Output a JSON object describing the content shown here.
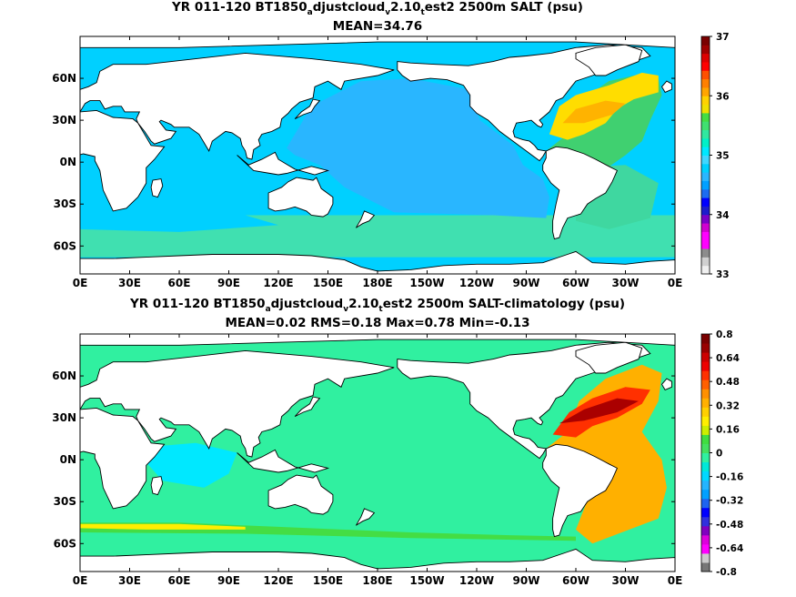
{
  "chart_data": [
    {
      "type": "heatmap",
      "title_parts": [
        "YR 011-120 BT1850",
        "a",
        "djustcloud",
        "v",
        "2.10",
        "t",
        "est2 2500m SALT (psu)"
      ],
      "subtitle": "MEAN=34.76",
      "x_ticks": [
        "0E",
        "30E",
        "60E",
        "90E",
        "120E",
        "150E",
        "180E",
        "150W",
        "120W",
        "90W",
        "60W",
        "30W",
        "0E"
      ],
      "y_ticks": [
        "60N",
        "30N",
        "0N",
        "30S",
        "60S"
      ],
      "colorbar_ticks": [
        "37",
        "36",
        "35",
        "34",
        "33"
      ],
      "colorbar_range": [
        33,
        37
      ],
      "colorbar_colors": [
        "#f0f0f0",
        "#d0d0d0",
        "#8c8c8c",
        "#ff00ff",
        "#ff00ff",
        "#d000d0",
        "#7a00c8",
        "#1c1ccc",
        "#0000ff",
        "#1c6cf0",
        "#00a0ff",
        "#29b6ff",
        "#00d0ff",
        "#3fd7ff",
        "#00e8ff",
        "#00f0c8",
        "#30e8a0",
        "#40e070",
        "#44dd44",
        "#f0e000",
        "#ffd200",
        "#ffa500",
        "#ff8000",
        "#ff5000",
        "#ff0000",
        "#dd0000",
        "#a00000",
        "#7a0000"
      ],
      "map_colors": {
        "ocean_base": "#00d0ff",
        "pacific": "#29b6ff",
        "southern": "#40e0b0",
        "atlantic_high": "#ffdd00",
        "atlantic_mid": "#40d070",
        "land": "#ffffff"
      }
    },
    {
      "type": "heatmap",
      "title_parts": [
        "YR 011-120 BT1850",
        "a",
        "djustcloud",
        "v",
        "2.10",
        "t",
        "est2 2500m SALT-climatology (psu)"
      ],
      "subtitle": "MEAN=0.02   RMS=0.18   Max=0.78   Min=-0.13",
      "x_ticks": [
        "0E",
        "30E",
        "60E",
        "90E",
        "120E",
        "150E",
        "180E",
        "150W",
        "120W",
        "90W",
        "60W",
        "30W",
        "0E"
      ],
      "y_ticks": [
        "60N",
        "30N",
        "0N",
        "30S",
        "60S"
      ],
      "colorbar_ticks": [
        "0.8",
        "0.64",
        "0.48",
        "0.32",
        "0.16",
        "0",
        "-0.16",
        "-0.32",
        "-0.48",
        "-0.64",
        "-0.8"
      ],
      "colorbar_range": [
        -0.8,
        0.8
      ],
      "colorbar_colors": [
        "#777777",
        "#cccccc",
        "#ff00ff",
        "#dd00dd",
        "#8000c0",
        "#3030dd",
        "#0000ff",
        "#1e64f0",
        "#00a0ff",
        "#24b4ff",
        "#00d8ff",
        "#00e8d8",
        "#30f0a0",
        "#44e060",
        "#40dd40",
        "#ccee00",
        "#ffee00",
        "#ffd000",
        "#ffb000",
        "#ff9000",
        "#ff6000",
        "#ff3000",
        "#ee0000",
        "#cc0000",
        "#990000",
        "#7a0000"
      ],
      "map_colors": {
        "ocean_base": "#30f0a0",
        "cyan_patches": "#00e8ff",
        "southern_band": "#ffee00",
        "atlantic_high": "#aa0000",
        "land": "#ffffff"
      }
    }
  ]
}
